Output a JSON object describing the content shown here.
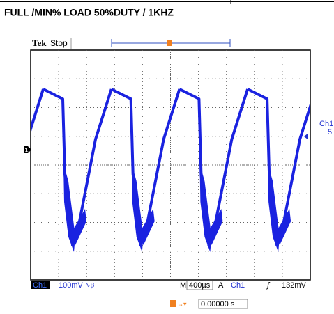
{
  "title": "FULL /MIN% LOAD 50%DUTY / 1KHZ",
  "scope": {
    "brand": "Tek",
    "status": "Stop",
    "channel_marker": "1",
    "trigger_marker": "T",
    "side_label": [
      "Ch1",
      "5"
    ]
  },
  "status_bar": {
    "channel": "Ch1",
    "scale": "100mV",
    "timebase_label": "M",
    "timebase": "400µs",
    "trigger_label": "A",
    "trigger_channel": "Ch1",
    "trigger_level": "132mV"
  },
  "trigger_time": "0.00000 s"
}
